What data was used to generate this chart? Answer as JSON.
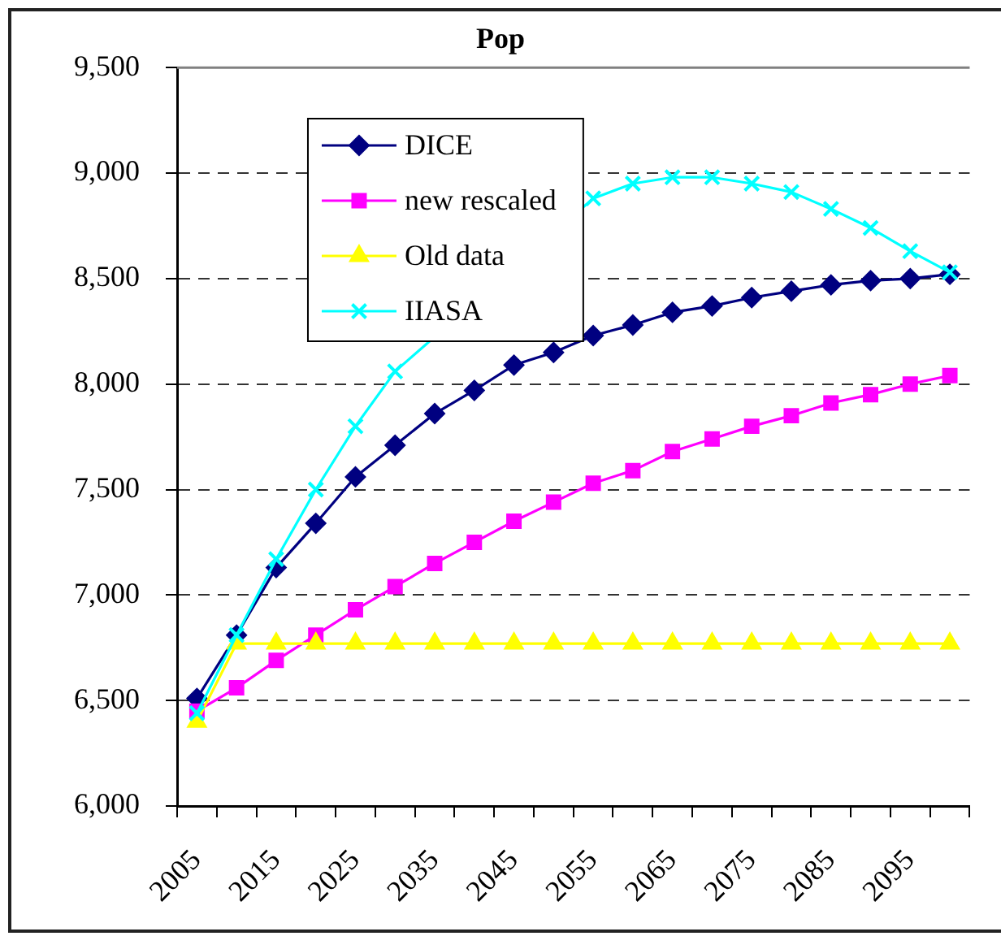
{
  "chart_data": {
    "type": "line",
    "title": "Pop",
    "categories": [
      "2005",
      null,
      "2015",
      null,
      "2025",
      null,
      "2035",
      null,
      "2045",
      null,
      "2055",
      null,
      "2065",
      null,
      "2075",
      null,
      "2085",
      null,
      "2095",
      null
    ],
    "series": [
      {
        "name": "DICE",
        "color": "#000080",
        "marker": "diamond",
        "values": [
          6510,
          6810,
          7130,
          7340,
          7560,
          7710,
          7860,
          7970,
          8090,
          8150,
          8230,
          8280,
          8340,
          8370,
          8410,
          8440,
          8470,
          8490,
          8500,
          8520
        ]
      },
      {
        "name": "new rescaled",
        "color": "#ff00ff",
        "marker": "square",
        "values": [
          6450,
          6560,
          6690,
          6810,
          6930,
          7040,
          7150,
          7250,
          7350,
          7440,
          7530,
          7590,
          7680,
          7740,
          7800,
          7850,
          7910,
          7950,
          8000,
          8040
        ]
      },
      {
        "name": "Old data",
        "color": "#ffff00",
        "marker": "triangle",
        "values": [
          6400,
          6770,
          6770,
          6770,
          6770,
          6770,
          6770,
          6770,
          6770,
          6770,
          6770,
          6770,
          6770,
          6770,
          6770,
          6770,
          6770,
          6770,
          6770,
          6770
        ]
      },
      {
        "name": "IIASA",
        "color": "#00ffff",
        "marker": "cross",
        "values": [
          6440,
          6810,
          7170,
          7500,
          7800,
          8060,
          null,
          null,
          null,
          null,
          8880,
          8950,
          8980,
          8980,
          8950,
          8910,
          8830,
          8740,
          8630,
          8530
        ]
      }
    ],
    "ylim": [
      6000,
      9500
    ],
    "yticks": [
      {
        "value": 6000,
        "label": "6,000"
      },
      {
        "value": 6500,
        "label": "6,500"
      },
      {
        "value": 7000,
        "label": "7,000"
      },
      {
        "value": 7500,
        "label": "7,500"
      },
      {
        "value": 8000,
        "label": "8,000"
      },
      {
        "value": 8500,
        "label": "8,500"
      },
      {
        "value": 9000,
        "label": "9,000"
      },
      {
        "value": 9500,
        "label": "9,500"
      }
    ],
    "grid": "y",
    "legend": "top left",
    "line_style": "solid"
  }
}
